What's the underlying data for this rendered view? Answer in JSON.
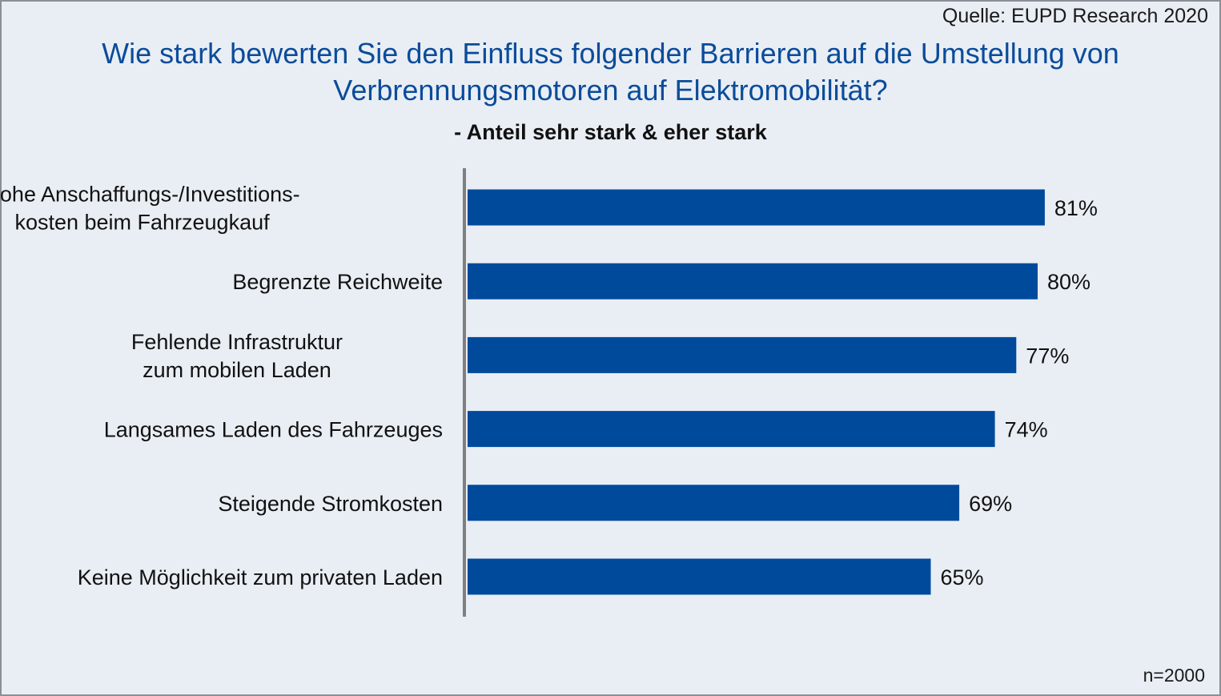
{
  "source": "Quelle: EUPD Research 2020",
  "footnote": "n=2000",
  "colors": {
    "bar": "#004a9c",
    "title": "#0b4c9a",
    "axis": "#7f7f7f"
  },
  "chart_data": {
    "type": "bar",
    "orientation": "horizontal",
    "title_lines": [
      "Wie stark bewerten Sie den Einfluss folgender Barrieren auf die Umstellung von",
      "Verbrennungsmotoren auf Elektromobilität?"
    ],
    "subtitle": "- Anteil sehr stark & eher stark",
    "categories": [
      [
        "Hohe Anschaffungs-/Investitions-",
        "kosten beim Fahrzeugkauf"
      ],
      [
        "Begrenzte Reichweite"
      ],
      [
        "Fehlende Infrastruktur",
        "zum mobilen Laden"
      ],
      [
        "Langsames Laden des Fahrzeuges"
      ],
      [
        "Steigende Stromkosten"
      ],
      [
        "Keine Möglichkeit zum privaten Laden"
      ]
    ],
    "values": [
      81,
      80,
      77,
      74,
      69,
      65
    ],
    "value_labels": [
      "81%",
      "80%",
      "77%",
      "74%",
      "69%",
      "65%"
    ],
    "xlim": [
      0,
      100
    ],
    "grid": false,
    "legend": "none"
  }
}
